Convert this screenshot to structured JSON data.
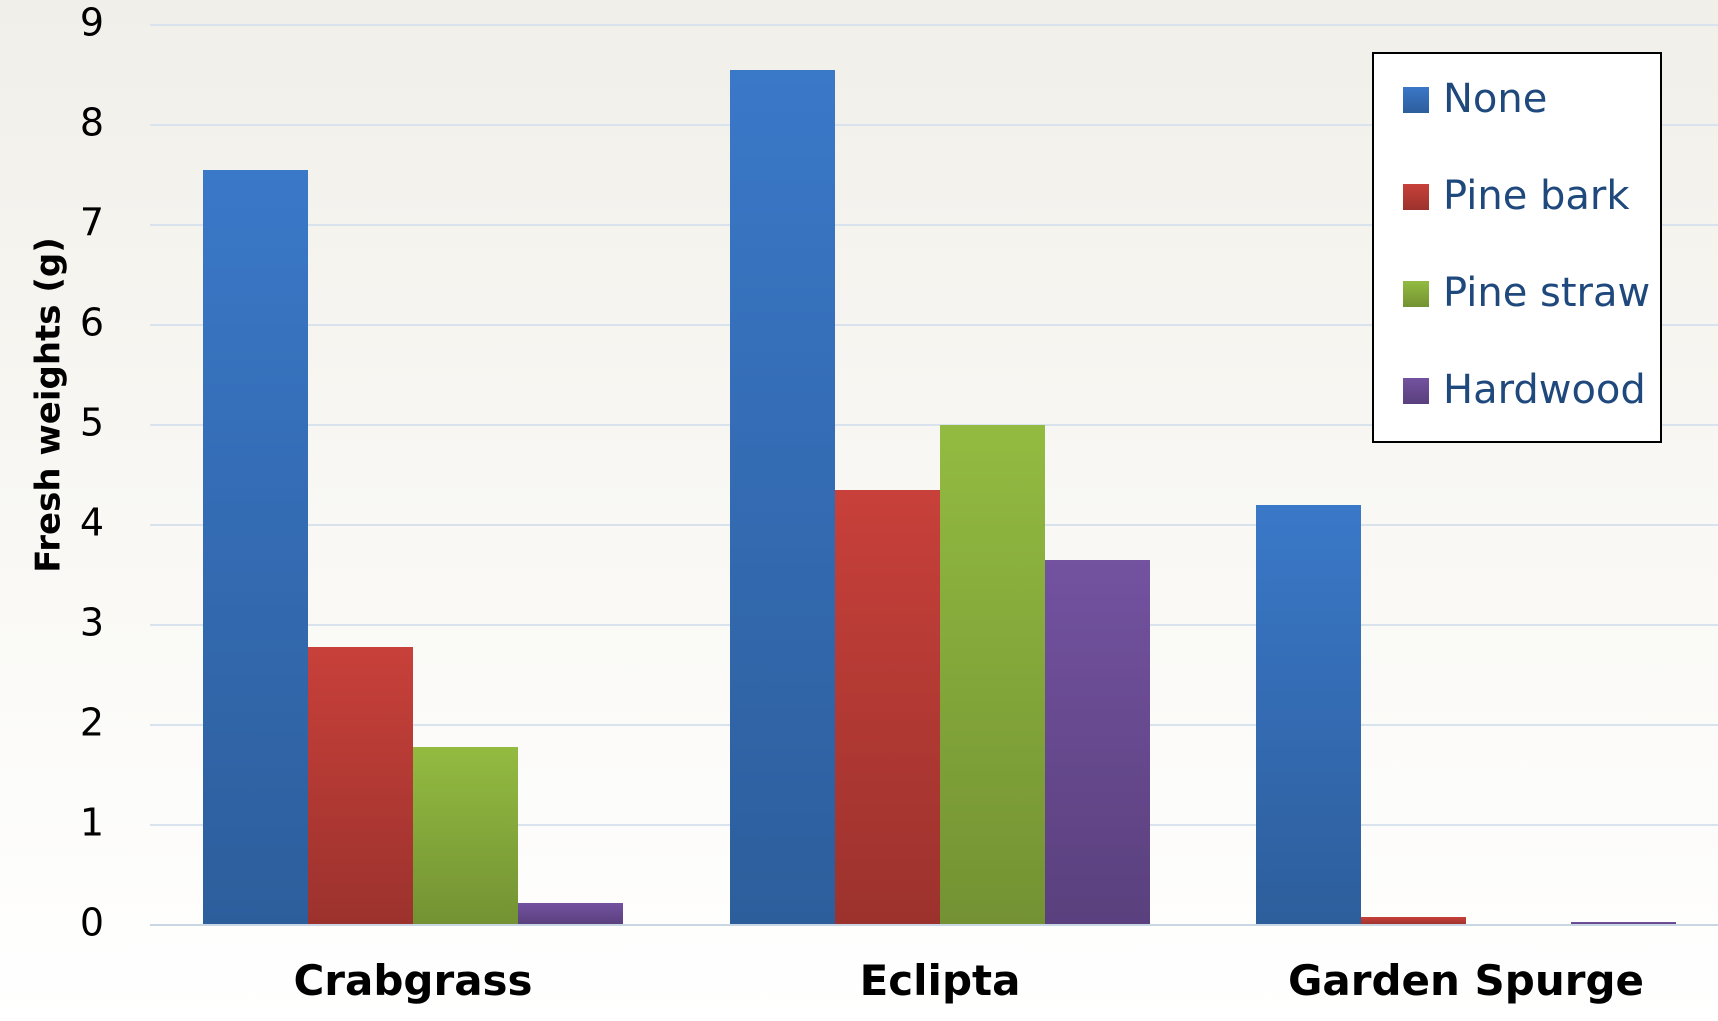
{
  "chart_data": {
    "type": "bar",
    "categories": [
      "Crabgrass",
      "Eclipta",
      "Garden Spurge"
    ],
    "series": [
      {
        "name": "None",
        "values": [
          7.55,
          8.55,
          4.2
        ],
        "color": "#3a78c8"
      },
      {
        "name": "Pine bark",
        "values": [
          2.78,
          4.35,
          0.08
        ],
        "color": "#c8403a"
      },
      {
        "name": "Pine straw",
        "values": [
          1.78,
          5.0,
          0.0
        ],
        "color": "#93bb41"
      },
      {
        "name": "Hardwood",
        "values": [
          0.22,
          3.65,
          0.03
        ],
        "color": "#7352a0"
      }
    ],
    "title": "",
    "xlabel": "",
    "ylabel": "Fresh weights (g)",
    "ylim": [
      0,
      9
    ],
    "yticks": [
      "0",
      "1",
      "2",
      "3",
      "4",
      "5",
      "6",
      "7",
      "8",
      "9"
    ],
    "grid": true,
    "legend_position": "top-right"
  }
}
